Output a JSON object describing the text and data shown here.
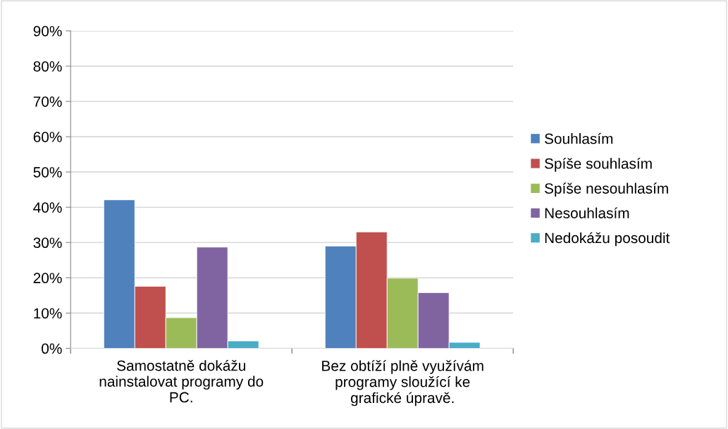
{
  "chart_data": {
    "type": "bar",
    "categories": [
      "Samostatně dokážu nainstalovat programy do PC.",
      "Bez obtíží plně využívám programy sloužící ke grafické úpravě."
    ],
    "series": [
      {
        "name": "Souhlasím",
        "color": "#4f81bd",
        "values": [
          42.1,
          29.0
        ]
      },
      {
        "name": "Spíše souhlasím",
        "color": "#c0504d",
        "values": [
          17.6,
          33.0
        ]
      },
      {
        "name": "Spíše nesouhlasím",
        "color": "#9bbb59",
        "values": [
          8.7,
          19.9
        ]
      },
      {
        "name": "Nesouhlasím",
        "color": "#8064a2",
        "values": [
          28.7,
          15.8
        ]
      },
      {
        "name": "Nedokážu posoudit",
        "color": "#4bacc6",
        "values": [
          2.1,
          1.7
        ]
      }
    ],
    "ylim": [
      0,
      90
    ],
    "yticks": [
      {
        "value": 0,
        "label": "0%"
      },
      {
        "value": 10,
        "label": "10%"
      },
      {
        "value": 20,
        "label": "20%"
      },
      {
        "value": 30,
        "label": "30%"
      },
      {
        "value": 40,
        "label": "40%"
      },
      {
        "value": 50,
        "label": "50%"
      },
      {
        "value": 60,
        "label": "60%"
      },
      {
        "value": 70,
        "label": "70%"
      },
      {
        "value": 80,
        "label": "80%"
      },
      {
        "value": 90,
        "label": "90%"
      }
    ],
    "grid": "y",
    "legend": "right"
  }
}
